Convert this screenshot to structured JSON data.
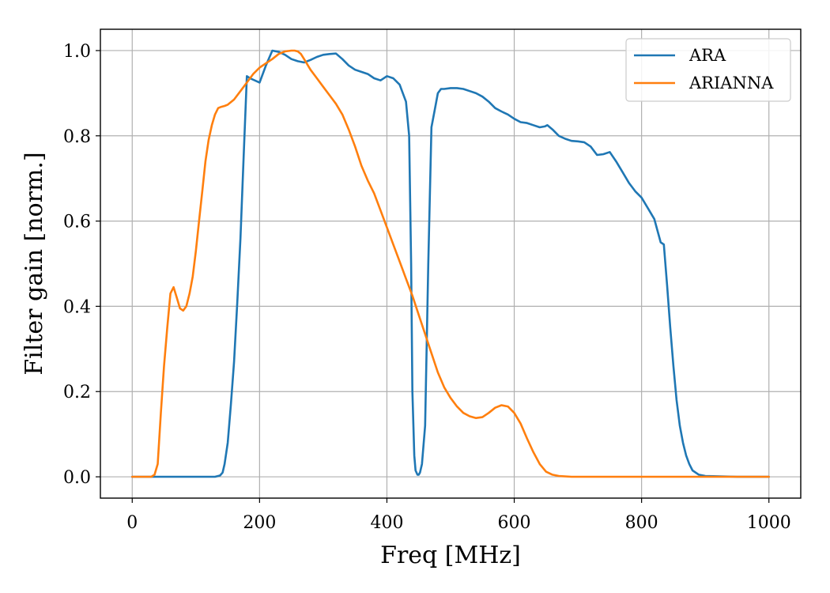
{
  "chart_data": {
    "type": "line",
    "title": "",
    "xlabel": "Freq [MHz]",
    "ylabel": "Filter gain [norm.]",
    "xlim": [
      -50,
      1050
    ],
    "ylim": [
      -0.05,
      1.05
    ],
    "xticks": [
      0,
      200,
      400,
      600,
      800,
      1000
    ],
    "yticks": [
      0.0,
      0.2,
      0.4,
      0.6,
      0.8,
      1.0
    ],
    "xtick_labels": [
      "0",
      "200",
      "400",
      "600",
      "800",
      "1000"
    ],
    "ytick_labels": [
      "0.0",
      "0.2",
      "0.4",
      "0.6",
      "0.8",
      "1.0"
    ],
    "grid": true,
    "legend_position": "top-right",
    "series": [
      {
        "name": "ARA",
        "color": "#1f77b4",
        "x": [
          0,
          50,
          100,
          130,
          138,
          142,
          145,
          150,
          155,
          160,
          165,
          170,
          175,
          180,
          185,
          200,
          210,
          220,
          230,
          240,
          250,
          260,
          270,
          280,
          290,
          300,
          310,
          320,
          330,
          340,
          350,
          360,
          370,
          380,
          390,
          400,
          410,
          420,
          430,
          435,
          438,
          440,
          443,
          445,
          448,
          450,
          452,
          455,
          460,
          465,
          470,
          475,
          480,
          485,
          490,
          500,
          510,
          520,
          530,
          540,
          550,
          560,
          570,
          580,
          590,
          600,
          610,
          620,
          630,
          640,
          648,
          652,
          660,
          670,
          680,
          690,
          700,
          710,
          720,
          730,
          740,
          750,
          760,
          770,
          780,
          790,
          800,
          810,
          820,
          830,
          835,
          840,
          845,
          850,
          855,
          860,
          865,
          870,
          875,
          880,
          890,
          900,
          950,
          1000
        ],
        "y": [
          0,
          0,
          0,
          0,
          0.003,
          0.01,
          0.03,
          0.08,
          0.17,
          0.27,
          0.41,
          0.56,
          0.75,
          0.94,
          0.935,
          0.925,
          0.965,
          1.0,
          0.997,
          0.99,
          0.98,
          0.975,
          0.972,
          0.978,
          0.985,
          0.99,
          0.992,
          0.993,
          0.98,
          0.965,
          0.955,
          0.95,
          0.945,
          0.935,
          0.93,
          0.94,
          0.935,
          0.92,
          0.88,
          0.8,
          0.5,
          0.2,
          0.05,
          0.015,
          0.005,
          0.005,
          0.01,
          0.03,
          0.12,
          0.5,
          0.82,
          0.86,
          0.9,
          0.91,
          0.91,
          0.912,
          0.912,
          0.91,
          0.905,
          0.9,
          0.892,
          0.88,
          0.865,
          0.857,
          0.85,
          0.84,
          0.832,
          0.83,
          0.825,
          0.82,
          0.822,
          0.825,
          0.815,
          0.8,
          0.793,
          0.788,
          0.787,
          0.785,
          0.775,
          0.755,
          0.757,
          0.762,
          0.74,
          0.715,
          0.69,
          0.67,
          0.655,
          0.63,
          0.605,
          0.55,
          0.545,
          0.45,
          0.35,
          0.26,
          0.18,
          0.12,
          0.08,
          0.05,
          0.03,
          0.015,
          0.005,
          0.002,
          0,
          0
        ]
      },
      {
        "name": "ARIANNA",
        "color": "#ff7f0e",
        "x": [
          0,
          20,
          30,
          35,
          40,
          45,
          50,
          55,
          60,
          65,
          70,
          75,
          80,
          85,
          90,
          95,
          100,
          105,
          110,
          115,
          120,
          125,
          130,
          135,
          140,
          145,
          150,
          160,
          170,
          180,
          190,
          200,
          210,
          220,
          230,
          240,
          250,
          255,
          260,
          265,
          270,
          280,
          290,
          300,
          310,
          320,
          330,
          340,
          350,
          360,
          370,
          380,
          390,
          400,
          410,
          420,
          430,
          440,
          450,
          460,
          470,
          480,
          490,
          500,
          510,
          520,
          530,
          540,
          550,
          560,
          570,
          580,
          590,
          600,
          610,
          620,
          630,
          640,
          650,
          660,
          670,
          680,
          690,
          700,
          710,
          720,
          730,
          740,
          800,
          900,
          1000
        ],
        "y": [
          0,
          0,
          0,
          0.005,
          0.03,
          0.15,
          0.26,
          0.35,
          0.43,
          0.445,
          0.42,
          0.395,
          0.39,
          0.4,
          0.43,
          0.47,
          0.53,
          0.6,
          0.67,
          0.74,
          0.79,
          0.825,
          0.85,
          0.865,
          0.868,
          0.87,
          0.873,
          0.885,
          0.905,
          0.925,
          0.945,
          0.96,
          0.97,
          0.98,
          0.992,
          0.998,
          1.0,
          1.0,
          0.998,
          0.992,
          0.98,
          0.955,
          0.935,
          0.915,
          0.895,
          0.875,
          0.85,
          0.815,
          0.775,
          0.73,
          0.695,
          0.665,
          0.625,
          0.585,
          0.545,
          0.505,
          0.465,
          0.425,
          0.38,
          0.335,
          0.29,
          0.245,
          0.21,
          0.185,
          0.165,
          0.15,
          0.142,
          0.138,
          0.14,
          0.15,
          0.162,
          0.168,
          0.165,
          0.15,
          0.125,
          0.09,
          0.058,
          0.03,
          0.012,
          0.005,
          0.002,
          0.001,
          0,
          0,
          0,
          0,
          0,
          0,
          0,
          0,
          0
        ]
      }
    ]
  }
}
